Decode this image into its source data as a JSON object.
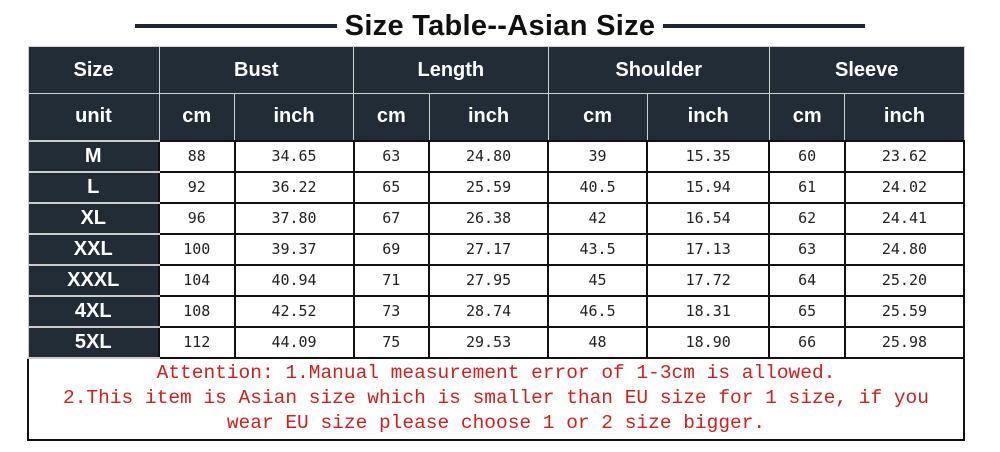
{
  "title": "Size Table--Asian Size",
  "headers": {
    "size": "Size",
    "groups": [
      "Bust",
      "Length",
      "Shoulder",
      "Sleeve"
    ],
    "unit_label": "unit",
    "units": [
      "cm",
      "inch",
      "cm",
      "inch",
      "cm",
      "inch",
      "cm",
      "inch"
    ]
  },
  "rows": [
    {
      "size": "M",
      "values": [
        "88",
        "34.65",
        "63",
        "24.80",
        "39",
        "15.35",
        "60",
        "23.62"
      ]
    },
    {
      "size": "L",
      "values": [
        "92",
        "36.22",
        "65",
        "25.59",
        "40.5",
        "15.94",
        "61",
        "24.02"
      ]
    },
    {
      "size": "XL",
      "values": [
        "96",
        "37.80",
        "67",
        "26.38",
        "42",
        "16.54",
        "62",
        "24.41"
      ]
    },
    {
      "size": "XXL",
      "values": [
        "100",
        "39.37",
        "69",
        "27.17",
        "43.5",
        "17.13",
        "63",
        "24.80"
      ]
    },
    {
      "size": "XXXL",
      "values": [
        "104",
        "40.94",
        "71",
        "27.95",
        "45",
        "17.72",
        "64",
        "25.20"
      ]
    },
    {
      "size": "4XL",
      "values": [
        "108",
        "42.52",
        "73",
        "28.74",
        "46.5",
        "18.31",
        "65",
        "25.59"
      ]
    },
    {
      "size": "5XL",
      "values": [
        "112",
        "44.09",
        "75",
        "29.53",
        "48",
        "18.90",
        "66",
        "25.98"
      ]
    }
  ],
  "note": {
    "line1": "Attention: 1.Manual measurement error of 1-3cm is allowed.",
    "line2": "2.This item is Asian size which is smaller than EU size for 1 size, if you wear EU size please choose 1 or 2 size bigger."
  },
  "colors": {
    "header_bg": "#222c36",
    "note_text": "#d0201c"
  }
}
